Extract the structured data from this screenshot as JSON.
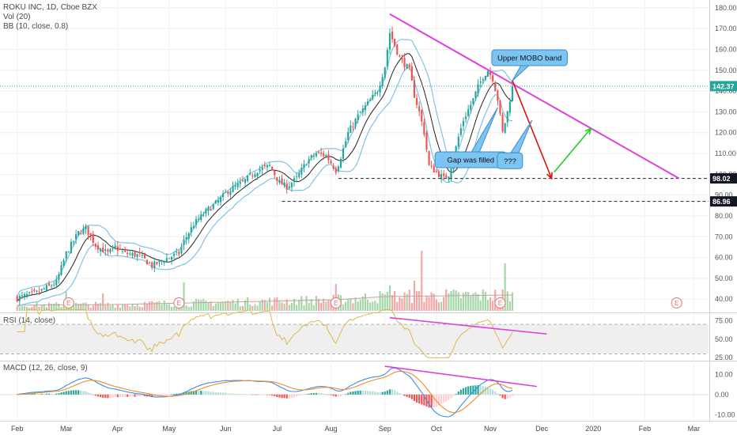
{
  "header": {
    "symbol_line": "ROKU INC, 1D, Cboe BZX",
    "volume_line": "Vol (20)",
    "bb_line": "BB (10, close, 0.8)"
  },
  "panes": {
    "rsi_label": "RSI (14, close)",
    "macd_label": "MACD (12, 26, close, 9)"
  },
  "colors": {
    "up": "#26a69a",
    "down": "#ef5350",
    "vol_up": "#a5d6a7",
    "vol_down": "#f4a6a6",
    "bb": "#7ec3e6",
    "basis": "#222222",
    "trendline": "#e040e0",
    "red_arrow": "#e01010",
    "green_arrow": "#22cc22",
    "rsi": "#e0b84a",
    "macd": "#3a8ee6",
    "signal": "#ef8b2c",
    "price_label": "#26a69a",
    "callout_fill": "#7cc4f2"
  },
  "chart_data": [
    {
      "type": "candlestick",
      "title": "ROKU INC, 1D, Cboe BZX",
      "y_axis": {
        "ticks": [
          40,
          50,
          60,
          70,
          80,
          90,
          100,
          110,
          120,
          130,
          140,
          150,
          160,
          170,
          180
        ],
        "tick_labels": [
          "40.00",
          "50.00",
          "60.00",
          "70.00",
          "80.00",
          "90.00",
          "100.00",
          "110.00",
          "120.00",
          "130.00",
          "140.00",
          "150.00",
          "160.00",
          "170.00",
          "180.00"
        ],
        "ylim": [
          34,
          183
        ]
      },
      "x_axis": {
        "tick_labels": [
          "Feb",
          "Mar",
          "Apr",
          "May",
          "Jun",
          "Jul",
          "Aug",
          "Sep",
          "Oct",
          "Nov",
          "Dec",
          "2020",
          "Feb",
          "Mar"
        ],
        "tick_index": [
          0,
          20,
          41,
          62,
          85,
          106,
          128,
          150,
          171,
          193,
          214,
          235,
          256,
          276
        ],
        "range": [
          -7,
          282
        ]
      },
      "price_path": [
        [
          0,
          40.5
        ],
        [
          8,
          43
        ],
        [
          16,
          48
        ],
        [
          20,
          62
        ],
        [
          25,
          72
        ],
        [
          28,
          74
        ],
        [
          32,
          66
        ],
        [
          37,
          62
        ],
        [
          40,
          65
        ],
        [
          44,
          62
        ],
        [
          50,
          61
        ],
        [
          55,
          56
        ],
        [
          60,
          59
        ],
        [
          66,
          62
        ],
        [
          68,
          68
        ],
        [
          72,
          76
        ],
        [
          77,
          82
        ],
        [
          82,
          87
        ],
        [
          86,
          92
        ],
        [
          92,
          96
        ],
        [
          98,
          102
        ],
        [
          103,
          104
        ],
        [
          107,
          96
        ],
        [
          110,
          94
        ],
        [
          114,
          98
        ],
        [
          118,
          106
        ],
        [
          122,
          110
        ],
        [
          126,
          109
        ],
        [
          130,
          102
        ],
        [
          131,
          105
        ],
        [
          133,
          112
        ],
        [
          135,
          120
        ],
        [
          139,
          128
        ],
        [
          143,
          134
        ],
        [
          147,
          140
        ],
        [
          150,
          152
        ],
        [
          152,
          168
        ],
        [
          154,
          162
        ],
        [
          156,
          156
        ],
        [
          160,
          150
        ],
        [
          162,
          138
        ],
        [
          164,
          130
        ],
        [
          166,
          120
        ],
        [
          168,
          104
        ],
        [
          170,
          102
        ],
        [
          172,
          100
        ],
        [
          174,
          98
        ],
        [
          176,
          100
        ],
        [
          178,
          108
        ],
        [
          180,
          118
        ],
        [
          182,
          126
        ],
        [
          184,
          131
        ],
        [
          186,
          136
        ],
        [
          188,
          142
        ],
        [
          190,
          147
        ],
        [
          192,
          150
        ],
        [
          194,
          146
        ],
        [
          196,
          136
        ],
        [
          198,
          120
        ],
        [
          200,
          130
        ],
        [
          202,
          142.37
        ]
      ],
      "volume_profile": [
        [
          0,
          0.18
        ],
        [
          40,
          0.2
        ],
        [
          70,
          0.25
        ],
        [
          130,
          0.35
        ],
        [
          150,
          0.45
        ],
        [
          202,
          0.5
        ]
      ],
      "volume_spikes": [
        [
          20,
          0.6
        ],
        [
          35,
          0.55
        ],
        [
          68,
          0.9
        ],
        [
          130,
          0.85
        ],
        [
          152,
          0.8
        ],
        [
          162,
          0.95
        ],
        [
          165,
          1.9
        ],
        [
          199,
          1.5
        ]
      ],
      "earnings_markers": {
        "label": "E",
        "index": [
          21,
          66,
          130,
          197,
          269
        ]
      },
      "price_labels": [
        {
          "value": 142.37,
          "label": "142.37"
        },
        {
          "value": 98.02,
          "label": "98.02"
        },
        {
          "value": 86.96,
          "label": "86.96"
        }
      ],
      "horizontal_levels": [
        {
          "value": 98.02,
          "from_index": 131
        },
        {
          "value": 86.96,
          "from_index": 108
        }
      ],
      "trendline": {
        "from": [
          152,
          177
        ],
        "to": [
          270,
          98
        ]
      },
      "red_projection": [
        [
          202,
          145
        ],
        [
          218,
          98
        ]
      ],
      "green_projection": [
        [
          219,
          101
        ],
        [
          234,
          122
        ]
      ],
      "annotations": [
        {
          "text": "Upper MOBO band",
          "index": 209,
          "value": 156,
          "pointer": [
            202,
            145
          ]
        },
        {
          "text": "Gap was filled",
          "index": 185,
          "value": 107,
          "pointer": [
            196,
            132
          ]
        },
        {
          "text": "???",
          "index": 201,
          "value": 106.5,
          "pointer": [
            210,
            126
          ]
        }
      ]
    },
    {
      "type": "line",
      "title": "RSI (14, close)",
      "y_axis": {
        "ticks": [
          25,
          50,
          75
        ],
        "tick_labels": [
          "25.00",
          "50.00",
          "75.00"
        ],
        "ylim": [
          22,
          84
        ]
      },
      "band": [
        30,
        70
      ],
      "x_range": [
        0,
        202
      ],
      "divergence_line": {
        "from": [
          152,
          79
        ],
        "to": [
          216,
          57
        ]
      }
    },
    {
      "type": "bar",
      "title": "MACD (12, 26, close, 9)",
      "y_axis": {
        "ticks": [
          -10,
          0,
          10
        ],
        "tick_labels": [
          "-10.00",
          "0.00",
          "10.00"
        ],
        "ylim": [
          -13,
          16
        ]
      },
      "x_range": [
        0,
        202
      ],
      "divergence_line": {
        "from": [
          150,
          14
        ],
        "to": [
          212,
          4
        ]
      }
    }
  ]
}
